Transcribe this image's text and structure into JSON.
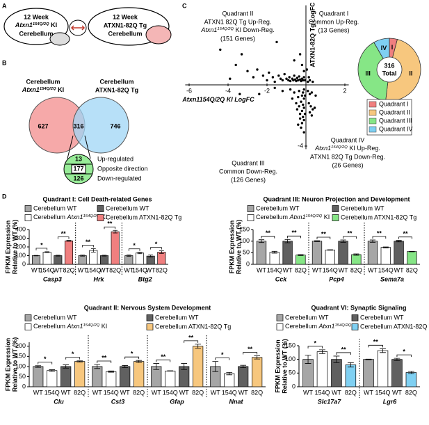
{
  "panel_a": {
    "letter": "A",
    "left": {
      "line1": "12 Week",
      "line2": {
        "gene": "Atxn1",
        "sup": "154Q/2Q",
        "suffix": " KI"
      },
      "line3": "Cerebellum"
    },
    "right": {
      "line1": "12 Week",
      "line2": "ATXN1-82Q Tg",
      "line3": "Cerebellum"
    }
  },
  "panel_b": {
    "letter": "B",
    "left_label": {
      "line1": "Cerebellum",
      "line2": {
        "gene": "Atxn1",
        "sup": "154Q/2Q",
        "suffix": " KI"
      }
    },
    "right_label": {
      "line1": "Cerebellum",
      "line2": "ATXN1-82Q Tg"
    },
    "counts": {
      "left": 627,
      "overlap": 316,
      "right": 746
    },
    "breakdown": [
      {
        "count": 13,
        "label": "Up-regulated"
      },
      {
        "count": 177,
        "label": "Opposite direction"
      },
      {
        "count": 126,
        "label": "Down-regulated"
      }
    ]
  },
  "panel_c_letter": "C",
  "panel_d_letter": "D",
  "chart_data": [
    {
      "type": "scatter",
      "color": "#000000",
      "xlabel": {
        "gene": "Atxn1154Q/2Q",
        "suffix": " KI LogFC"
      },
      "ylabel": "ATXN1-82Q Tg LogFC",
      "xlim": [
        -6.2,
        2.2
      ],
      "ylim": [
        -4.2,
        5.2
      ],
      "xticks": [
        -6,
        -4,
        -2,
        2
      ],
      "yticks": [
        -4
      ],
      "annotations": [
        {
          "title": "Quadrant II",
          "lines": [
            "ATXN1 82Q Tg Up-Reg.",
            {
              "gene": "Atxn1",
              "sup": "154Q/2Q",
              "suffix": " KI Down-Reg."
            },
            "(151 Genes)"
          ]
        },
        {
          "title": "Quadrant I",
          "lines": [
            "Common Up-Reg.",
            "(13 Genes)"
          ]
        },
        {
          "title": "Quadrant III",
          "lines": [
            "Common Down-Reg.",
            "(126 Genes)"
          ]
        },
        {
          "title": "Quadrant IV",
          "lines": [
            {
              "gene": "Atxn1",
              "sup": "154Q/2Q",
              "suffix": " KI Up-Reg."
            },
            "ATXN1 82Q Tg Down-Reg.",
            "(26 Genes)"
          ]
        }
      ],
      "x": [
        -4.4,
        -3.6,
        -3.3,
        -3.0,
        -2.7,
        -2.5,
        -2.2,
        -2.0,
        -1.9,
        -1.7,
        -1.6,
        -1.4,
        -1.3,
        -1.2,
        -1.1,
        -1.0,
        -0.9,
        -0.85,
        -0.8,
        -0.7,
        -0.65,
        -0.6,
        -0.55,
        -0.5,
        -0.45,
        -0.4,
        -0.35,
        -0.3,
        -0.25,
        -0.2,
        -0.15,
        -0.1,
        -0.1,
        -0.2,
        -0.3,
        -0.6,
        -1.5,
        -0.05,
        -3.9,
        -0.1,
        -0.15,
        -0.2,
        -0.1,
        -0.25,
        -0.15,
        -0.1,
        -0.2,
        -0.3,
        -0.15,
        -0.1,
        -0.2,
        -0.25,
        -0.1,
        -0.35,
        -0.4,
        -0.5,
        -0.45,
        -0.6,
        -0.7,
        -0.8,
        -1.2,
        -1.6,
        -2.4,
        -3.4,
        -0.3,
        -0.35,
        -0.05,
        -0.05,
        -0.4,
        0.1,
        0.2,
        0.3,
        0.15,
        0.25,
        0.35,
        0.2,
        0.3,
        0.5,
        0.45,
        0.1,
        0.2,
        0.15,
        0.35,
        0.05
      ],
      "y": [
        2.3,
        1.3,
        2.0,
        0.9,
        0.5,
        1.0,
        0.6,
        0.3,
        0.8,
        0.5,
        0.2,
        0.6,
        0.4,
        0.3,
        0.7,
        0.4,
        0.3,
        0.5,
        0.25,
        0.4,
        0.3,
        0.6,
        0.35,
        0.25,
        0.45,
        0.3,
        0.55,
        0.35,
        0.25,
        0.4,
        0.3,
        0.5,
        0.9,
        1.3,
        2.0,
        1.6,
        2.8,
        0.3,
        0.4,
        -0.3,
        -0.5,
        -0.7,
        -0.9,
        -1.1,
        -1.3,
        -1.5,
        -1.7,
        -1.9,
        -2.1,
        -2.3,
        -2.5,
        -2.8,
        -3.1,
        -0.4,
        -0.8,
        -1.2,
        -1.6,
        -0.5,
        -0.9,
        -0.3,
        -0.4,
        -0.2,
        -0.6,
        -0.6,
        -2.2,
        -1.4,
        -0.7,
        -1.9,
        -2.6,
        -0.4,
        -0.6,
        -0.5,
        -1.2,
        -1.4,
        -1.6,
        -1.8,
        -2.0,
        -0.7,
        -1.5,
        0.2,
        0.3,
        0.5,
        0.2,
        1.0
      ]
    },
    {
      "type": "pie",
      "categories": [
        "Quadrant I",
        "Quadrant II",
        "Quadrant III",
        "Quadrant IV"
      ],
      "values": [
        13,
        151,
        126,
        26
      ],
      "colors": [
        "#f07f7f",
        "#f7c77e",
        "#86e686",
        "#7fd0f2"
      ],
      "slice_labels": [
        "I",
        "II",
        "III",
        "IV"
      ],
      "total": 316,
      "total_label": "Total"
    },
    {
      "type": "bar",
      "title": "Quadrant I: Cell Death-related Genes",
      "ylabel": [
        "FPKM Expression",
        "Relative to WT (%)"
      ],
      "categories": [
        "Casp3",
        "Hrk",
        "Btg2"
      ],
      "group_labels": [
        "WT",
        "154Q",
        "WT",
        "82Q"
      ],
      "ylim": [
        0,
        400
      ],
      "yticks": [
        0,
        100,
        200,
        300,
        400
      ],
      "series": [
        {
          "name": "Cerebellum WT",
          "color": "#a6a6a6",
          "values": [
            100,
            100,
            100
          ],
          "errors": [
            3,
            6,
            8
          ]
        },
        {
          "name": {
            "text": "Cerebellum ",
            "gene": "Atxn1",
            "sup": "154Q/2Q",
            "suffix": " KI"
          },
          "color": "#ffffff",
          "values": [
            140,
            160,
            130
          ],
          "errors": [
            5,
            20,
            8
          ]
        },
        {
          "name": "Cerebellum WT",
          "color": "#606060",
          "values": [
            100,
            100,
            95
          ],
          "errors": [
            5,
            5,
            12
          ]
        },
        {
          "name": "Cerebellum ATXN1-82Q Tg",
          "color": "#f07f7f",
          "values": [
            270,
            375,
            140
          ],
          "errors": [
            5,
            15,
            15
          ]
        }
      ],
      "significance": [
        [
          "*",
          "**"
        ],
        [
          "**",
          "**"
        ],
        [
          "*",
          "*"
        ]
      ]
    },
    {
      "type": "bar",
      "title": "Quadrant III: Neuron Projection and Development",
      "ylabel": [
        "FPKM Expression",
        "Relative to WT (%)"
      ],
      "categories": [
        "Cck",
        "Pcp4",
        "Sema7a"
      ],
      "group_labels": [
        "WT",
        "154Q",
        "WT",
        "82Q"
      ],
      "ylim": [
        0,
        150
      ],
      "yticks": [
        0,
        50,
        100,
        150
      ],
      "series": [
        {
          "name": "Cerebellum WT",
          "color": "#a6a6a6",
          "values": [
            100,
            100,
            100
          ],
          "errors": [
            6,
            2,
            5
          ]
        },
        {
          "name": {
            "text": "Cerebellum ",
            "gene": "Atxn1",
            "sup": "154Q/2Q",
            "suffix": " KI"
          },
          "color": "#ffffff",
          "values": [
            52,
            62,
            73
          ],
          "errors": [
            4,
            1,
            2
          ]
        },
        {
          "name": "Cerebellum WT",
          "color": "#606060",
          "values": [
            100,
            100,
            100
          ],
          "errors": [
            7,
            5,
            3
          ]
        },
        {
          "name": "Cerebellum ATXN1-82Q Tg",
          "color": "#86e686",
          "values": [
            40,
            42,
            55
          ],
          "errors": [
            2,
            3,
            1
          ]
        }
      ],
      "significance": [
        [
          "**",
          "**"
        ],
        [
          "**",
          "**"
        ],
        [
          "**",
          "**"
        ]
      ]
    },
    {
      "type": "bar",
      "title": "Quadrant II: Nervous System Development",
      "ylabel": [
        "FPKM Expression",
        "Relative to WT (%)"
      ],
      "categories": [
        "Clu",
        "Cst3",
        "Gfap",
        "Nnat"
      ],
      "group_labels": [
        "WT",
        "154Q",
        "WT",
        "82Q"
      ],
      "ylim": [
        0,
        220
      ],
      "yticks": [
        0,
        50,
        100,
        150,
        200
      ],
      "series": [
        {
          "name": "Cerebellum WT",
          "color": "#a6a6a6",
          "values": [
            100,
            100,
            100,
            100
          ],
          "errors": [
            4,
            10,
            15,
            25
          ]
        },
        {
          "name": {
            "text": "Cerebellum ",
            "gene": "Atxn1",
            "sup": "154Q/2Q",
            "suffix": " KI"
          },
          "color": "#ffffff",
          "values": [
            80,
            75,
            78,
            65
          ],
          "errors": [
            4,
            3,
            1,
            6
          ]
        },
        {
          "name": "Cerebellum WT",
          "color": "#606060",
          "values": [
            100,
            100,
            100,
            100
          ],
          "errors": [
            8,
            5,
            15,
            6
          ]
        },
        {
          "name": "Cerebellum ATXN1-82Q Tg",
          "color": "#f7c77e",
          "values": [
            125,
            125,
            200,
            145
          ],
          "errors": [
            3,
            5,
            10,
            8
          ]
        }
      ],
      "significance": [
        [
          "*",
          "*"
        ],
        [
          "**",
          "*"
        ],
        [
          "**",
          "**"
        ],
        [
          "*",
          "**"
        ]
      ]
    },
    {
      "type": "bar",
      "title": "Quadrant VI: Synaptic Signaling",
      "ylabel": [
        "FPKM Expression",
        "Relative to WT (%)"
      ],
      "categories": [
        "Slc17a7",
        "Lgr6"
      ],
      "group_labels": [
        "WT",
        "154Q",
        "WT",
        "82Q"
      ],
      "ylim": [
        0,
        150
      ],
      "yticks": [
        0,
        50,
        100,
        150
      ],
      "series": [
        {
          "name": "Cerebellum WT",
          "color": "#a6a6a6",
          "values": [
            100,
            100
          ],
          "errors": [
            15,
            1
          ]
        },
        {
          "name": {
            "text": "Cerebellum ",
            "gene": "Atxn1",
            "sup": "154Q/2Q",
            "suffix": " KI"
          },
          "color": "#ffffff",
          "values": [
            128,
            132
          ],
          "errors": [
            7,
            7
          ]
        },
        {
          "name": "Cerebellum WT",
          "color": "#606060",
          "values": [
            100,
            100
          ],
          "errors": [
            12,
            4
          ]
        },
        {
          "name": "Cerebellum ATXN1-82Q Tg",
          "color": "#7fd0f2",
          "values": [
            80,
            52
          ],
          "errors": [
            8,
            4
          ]
        }
      ],
      "significance": [
        [
          "*",
          "**"
        ],
        [
          "**",
          "*"
        ]
      ]
    }
  ]
}
